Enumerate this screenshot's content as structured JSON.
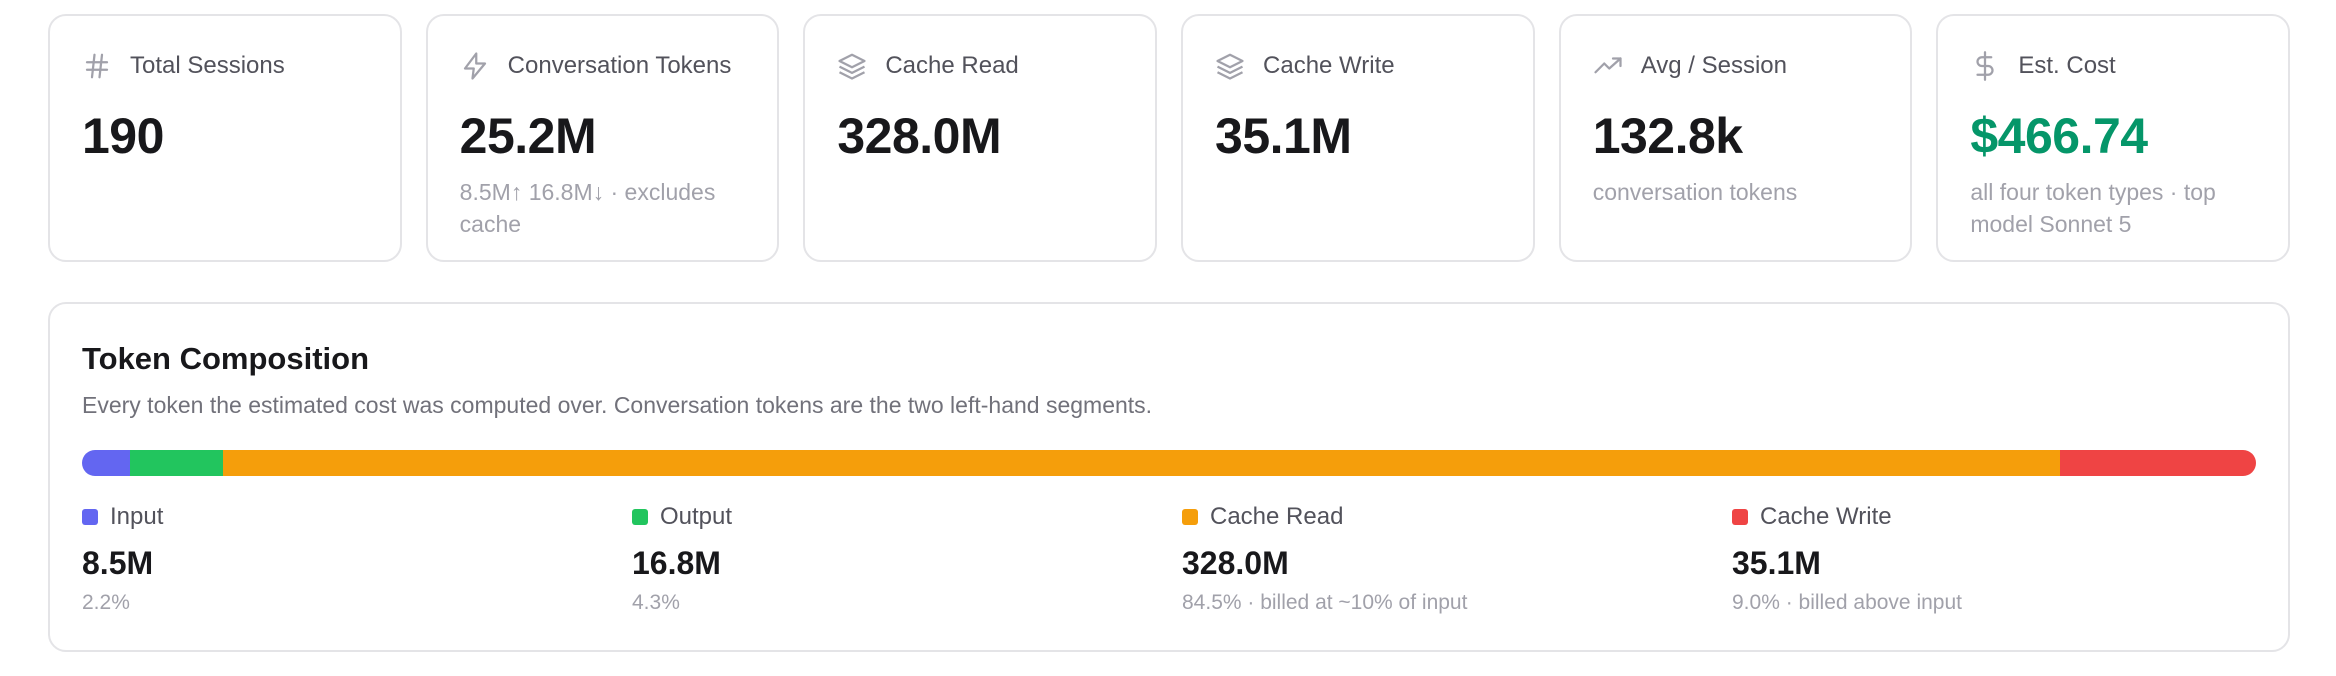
{
  "stats": [
    {
      "icon": "hash-icon",
      "label": "Total Sessions",
      "value": "190",
      "sub": ""
    },
    {
      "icon": "lightning-icon",
      "label": "Conversation Tokens",
      "value": "25.2M",
      "sub": "8.5M↑ 16.8M↓ · excludes cache"
    },
    {
      "icon": "layers-icon",
      "label": "Cache Read",
      "value": "328.0M",
      "sub": ""
    },
    {
      "icon": "layers-icon",
      "label": "Cache Write",
      "value": "35.1M",
      "sub": ""
    },
    {
      "icon": "trending-up-icon",
      "label": "Avg / Session",
      "value": "132.8k",
      "sub": "conversation tokens"
    },
    {
      "icon": "dollar-icon",
      "label": "Est. Cost",
      "value": "$466.74",
      "sub": "all four token types · top model Sonnet 5"
    }
  ],
  "composition": {
    "title": "Token Composition",
    "description": "Every token the estimated cost was computed over. Conversation tokens are the two left-hand segments.",
    "segments": [
      {
        "label": "Input",
        "value": "8.5M",
        "sub": "2.2%",
        "share": 0.022,
        "color": "#6366f1"
      },
      {
        "label": "Output",
        "value": "16.8M",
        "sub": "4.3%",
        "share": 0.043,
        "color": "#22c55e"
      },
      {
        "label": "Cache Read",
        "value": "328.0M",
        "sub": "84.5% · billed at ~10% of input",
        "share": 0.845,
        "color": "#f59e0b"
      },
      {
        "label": "Cache Write",
        "value": "35.1M",
        "sub": "9.0% · billed above input",
        "share": 0.09,
        "color": "#ef4444"
      }
    ]
  },
  "colors": {
    "cost_accent": "#059669",
    "icon_stroke": "#a1a1aa"
  }
}
